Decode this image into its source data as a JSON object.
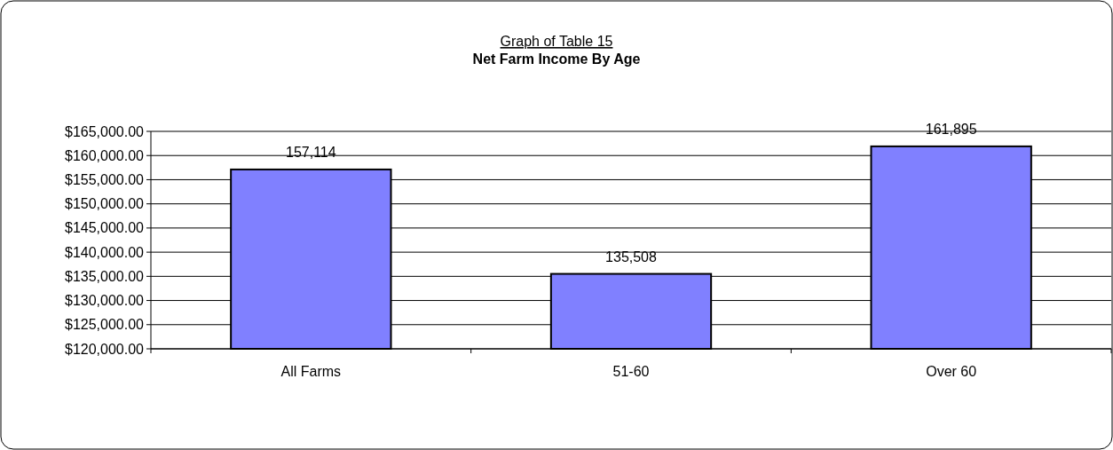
{
  "chart_data": {
    "type": "bar",
    "subtitle": "Graph of Table 15",
    "title": "Net Farm Income By Age",
    "categories": [
      "All Farms",
      "51-60",
      "Over 60"
    ],
    "values": [
      157114,
      135508,
      161895
    ],
    "color": "#8080ff",
    "ylim": [
      120000,
      165000
    ],
    "yticks": [
      {
        "value": 120000,
        "label": "$120,000.00"
      },
      {
        "value": 125000,
        "label": "$125,000.00"
      },
      {
        "value": 130000,
        "label": "$130,000.00"
      },
      {
        "value": 135000,
        "label": "$135,000.00"
      },
      {
        "value": 140000,
        "label": "$140,000.00"
      },
      {
        "value": 145000,
        "label": "$145,000.00"
      },
      {
        "value": 150000,
        "label": "$150,000.00"
      },
      {
        "value": 155000,
        "label": "$155,000.00"
      },
      {
        "value": 160000,
        "label": "$160,000.00"
      },
      {
        "value": 165000,
        "label": "$165,000.00"
      }
    ],
    "grid": "y",
    "value_labels": [
      "157,114",
      "135,508",
      "161,895"
    ]
  }
}
